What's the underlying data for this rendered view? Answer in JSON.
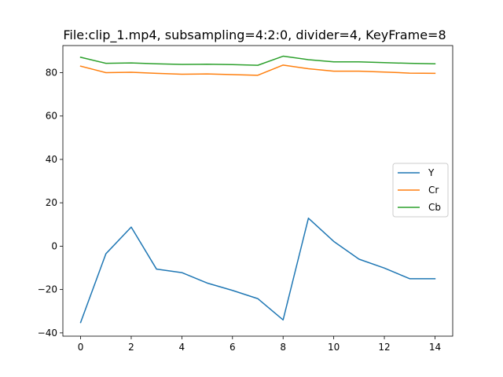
{
  "chart_data": {
    "type": "line",
    "title": "File:clip_1.mp4, subsampling=4:2:0, divider=4, KeyFrame=8",
    "xlabel": "",
    "ylabel": "",
    "x": [
      0,
      1,
      2,
      3,
      4,
      5,
      6,
      7,
      8,
      9,
      10,
      11,
      12,
      13,
      14
    ],
    "xlim": [
      -0.7,
      14.7
    ],
    "ylim": [
      -41.5,
      92.5
    ],
    "xticks": [
      0,
      2,
      4,
      6,
      8,
      10,
      12,
      14
    ],
    "yticks": [
      -40,
      -20,
      0,
      20,
      40,
      60,
      80
    ],
    "grid": false,
    "legend_position": "center-right",
    "series": [
      {
        "name": "Y",
        "color": "#1f77b4",
        "values": [
          -35.2,
          -3.5,
          8.8,
          -10.6,
          -12.2,
          -17.0,
          -20.4,
          -24.2,
          -34.0,
          12.9,
          2.2,
          -6.0,
          -10.1,
          -15.0,
          -15.0
        ]
      },
      {
        "name": "Cr",
        "color": "#ff7f0e",
        "values": [
          83.0,
          80.0,
          80.2,
          79.7,
          79.3,
          79.4,
          79.1,
          78.8,
          83.5,
          81.8,
          80.7,
          80.7,
          80.3,
          79.8,
          79.7
        ]
      },
      {
        "name": "Cb",
        "color": "#2ca02c",
        "values": [
          87.1,
          84.3,
          84.5,
          84.1,
          83.8,
          83.9,
          83.7,
          83.4,
          87.6,
          86.0,
          85.0,
          85.0,
          84.6,
          84.3,
          84.1
        ]
      }
    ]
  }
}
